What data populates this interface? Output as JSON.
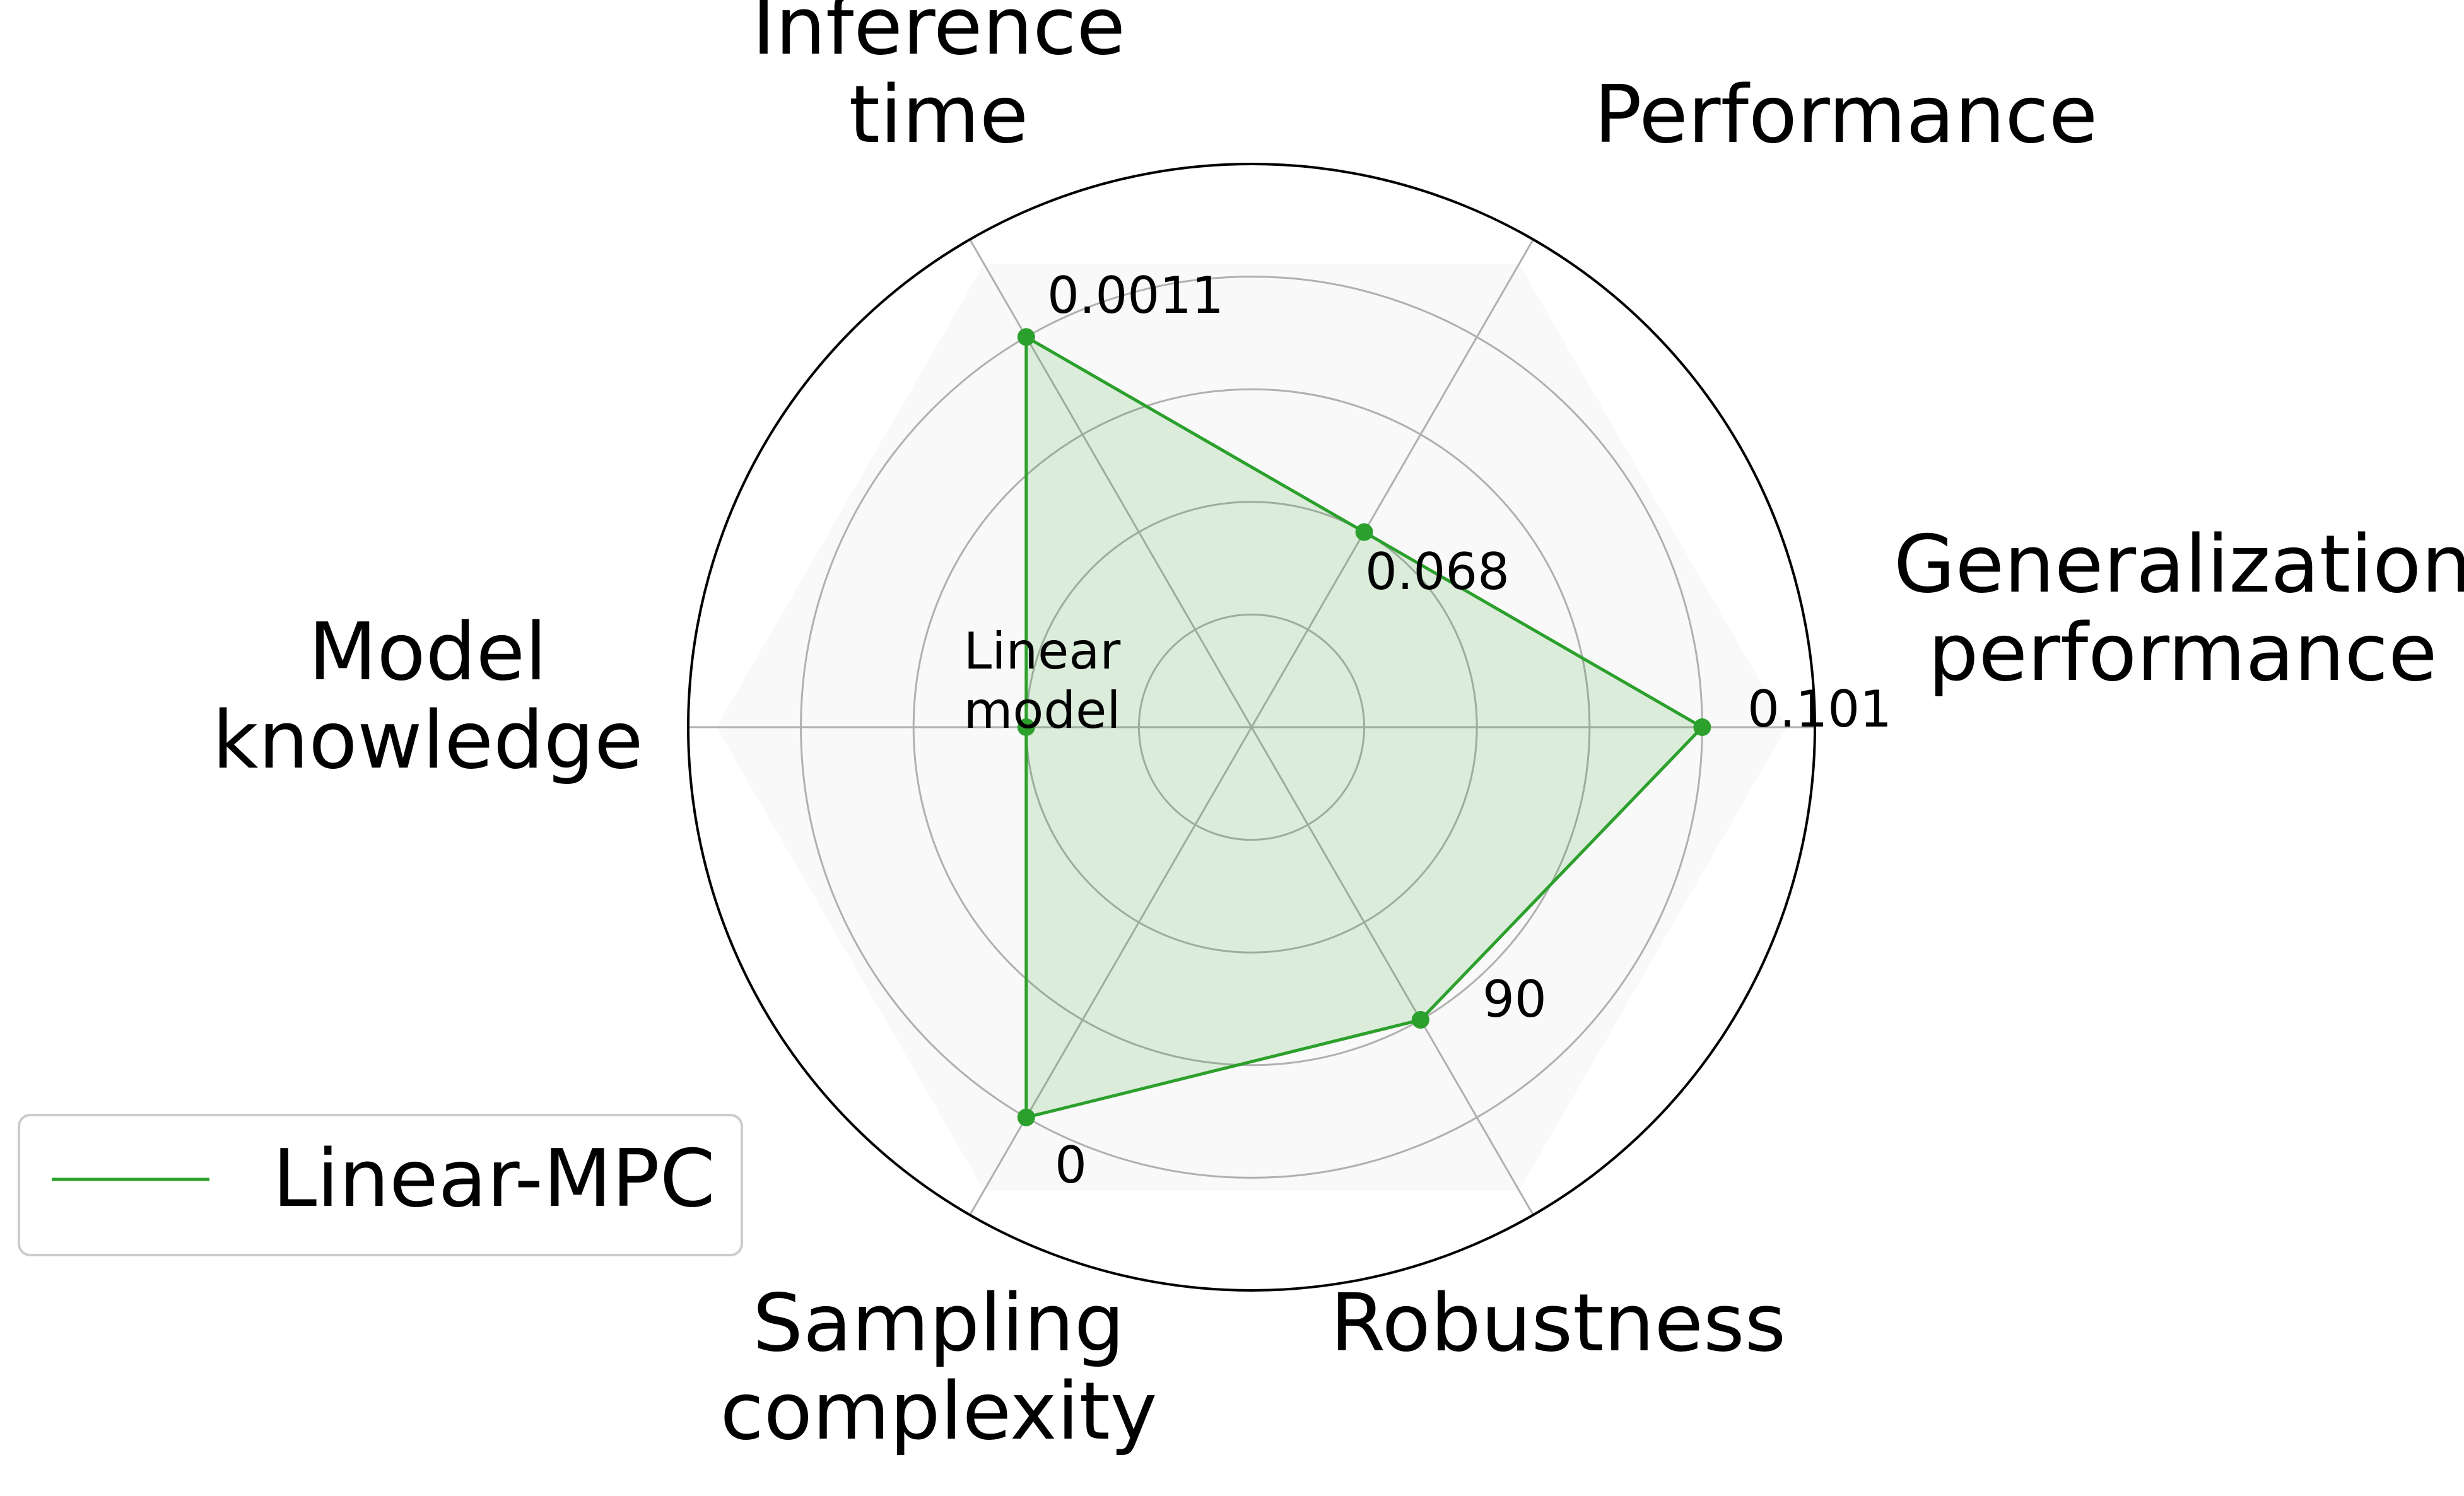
{
  "chart_data": {
    "type": "radar",
    "axes": [
      {
        "label": [
          "Generalization",
          "performance"
        ],
        "value_label": "0.101",
        "r": 0.8
      },
      {
        "label": [
          "Performance"
        ],
        "value_label": "0.068",
        "r": 0.4
      },
      {
        "label": [
          "Inference",
          "time"
        ],
        "value_label": "0.0011",
        "r": 0.8
      },
      {
        "label": [
          "Model",
          "knowledge"
        ],
        "value_label": [
          "Linear",
          "model"
        ],
        "r": 0.4
      },
      {
        "label": [
          "Sampling",
          "complexity"
        ],
        "value_label": "0",
        "r": 0.8
      },
      {
        "label": [
          "Robustness"
        ],
        "value_label": "90",
        "r": 0.6
      }
    ],
    "rlim": [
      0,
      1
    ],
    "grid": true,
    "series": [
      {
        "name": "Linear-MPC",
        "color": "#2ca02c"
      }
    ],
    "legend": {
      "position": "lower-left"
    }
  }
}
